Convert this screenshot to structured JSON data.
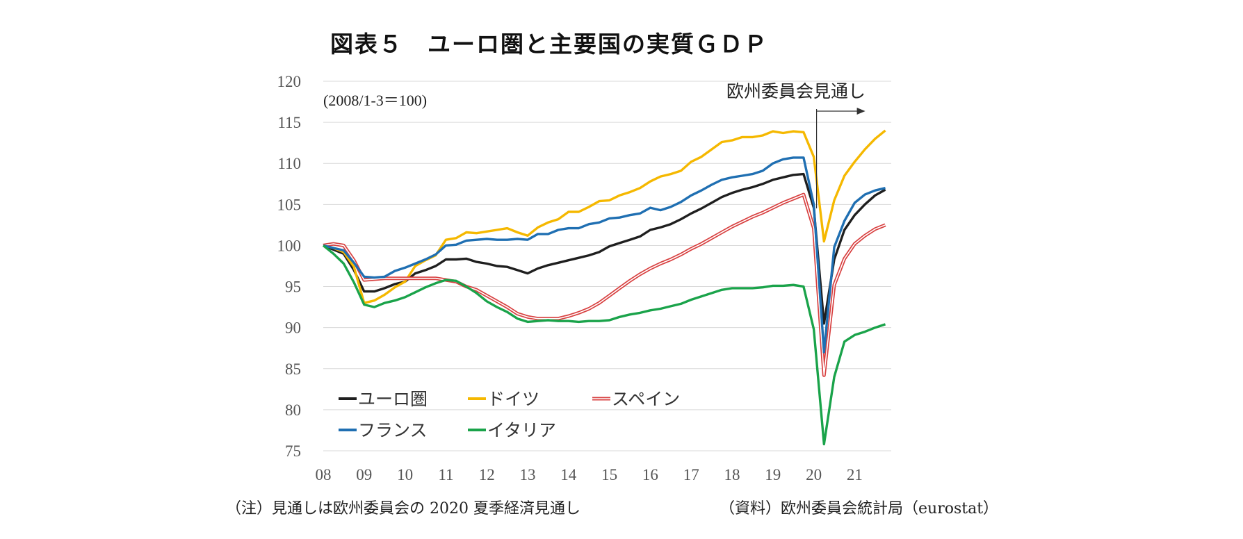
{
  "chart_data": {
    "type": "line",
    "title": "図表５　ユーロ圏と主要国の実質ＧＤＰ",
    "unit_label": "(2008/1-3＝100)",
    "annotation": "欧州委員会見通し",
    "xlabel": "",
    "ylabel": "",
    "ylim": [
      75,
      120
    ],
    "yticks": [
      75,
      80,
      85,
      90,
      95,
      100,
      105,
      110,
      115,
      120
    ],
    "ytick_labels": [
      "75",
      "80",
      "85",
      "90",
      "95",
      "100",
      "105",
      "110",
      "115",
      "120"
    ],
    "xlim": [
      2008,
      2021.75
    ],
    "xticks": [
      {
        "value": 2008,
        "label": "08"
      },
      {
        "value": 2009,
        "label": "09"
      },
      {
        "value": 2010,
        "label": "10"
      },
      {
        "value": 2011,
        "label": "11"
      },
      {
        "value": 2012,
        "label": "12"
      },
      {
        "value": 2013,
        "label": "13"
      },
      {
        "value": 2014,
        "label": "14"
      },
      {
        "value": 2015,
        "label": "15"
      },
      {
        "value": 2016,
        "label": "16"
      },
      {
        "value": 2017,
        "label": "17"
      },
      {
        "value": 2018,
        "label": "18"
      },
      {
        "value": 2019,
        "label": "19"
      },
      {
        "value": 2020,
        "label": "20"
      },
      {
        "value": 2021,
        "label": "21"
      }
    ],
    "forecast_start": 2020.0,
    "grid": true,
    "legend_position": "bottom-left",
    "x": [
      2008.0,
      2008.25,
      2008.5,
      2008.75,
      2009.0,
      2009.25,
      2009.5,
      2009.75,
      2010.0,
      2010.25,
      2010.5,
      2010.75,
      2011.0,
      2011.25,
      2011.5,
      2011.75,
      2012.0,
      2012.25,
      2012.5,
      2012.75,
      2013.0,
      2013.25,
      2013.5,
      2013.75,
      2014.0,
      2014.25,
      2014.5,
      2014.75,
      2015.0,
      2015.25,
      2015.5,
      2015.75,
      2016.0,
      2016.25,
      2016.5,
      2016.75,
      2017.0,
      2017.25,
      2017.5,
      2017.75,
      2018.0,
      2018.25,
      2018.5,
      2018.75,
      2019.0,
      2019.25,
      2019.5,
      2019.75,
      2020.0,
      2020.25,
      2020.5,
      2020.75,
      2021.0,
      2021.25,
      2021.5,
      2021.75
    ],
    "series": [
      {
        "name": "ユーロ圏",
        "color": "#1f1f1f",
        "style": "solid",
        "values": [
          100.0,
          99.5,
          99.0,
          97.0,
          94.4,
          94.4,
          94.8,
          95.3,
          95.6,
          96.6,
          97.0,
          97.5,
          98.3,
          98.3,
          98.4,
          98.0,
          97.8,
          97.5,
          97.4,
          97.0,
          96.6,
          97.2,
          97.6,
          97.9,
          98.2,
          98.5,
          98.8,
          99.2,
          99.9,
          100.3,
          100.7,
          101.1,
          101.9,
          102.2,
          102.6,
          103.2,
          103.9,
          104.5,
          105.2,
          105.9,
          106.4,
          106.8,
          107.1,
          107.5,
          108.0,
          108.3,
          108.6,
          108.7,
          104.6,
          90.5,
          98.3,
          101.9,
          103.7,
          105.0,
          106.1,
          106.8
        ]
      },
      {
        "name": "ドイツ",
        "color": "#f5b800",
        "style": "solid",
        "values": [
          100.0,
          99.7,
          99.2,
          97.4,
          93.0,
          93.3,
          94.0,
          94.9,
          95.6,
          97.5,
          98.2,
          98.8,
          100.7,
          100.9,
          101.6,
          101.5,
          101.7,
          101.9,
          102.1,
          101.6,
          101.2,
          102.2,
          102.8,
          103.2,
          104.1,
          104.1,
          104.7,
          105.4,
          105.5,
          106.1,
          106.5,
          107.0,
          107.8,
          108.4,
          108.7,
          109.1,
          110.2,
          110.8,
          111.7,
          112.6,
          112.8,
          113.2,
          113.2,
          113.4,
          113.9,
          113.7,
          113.9,
          113.8,
          110.8,
          100.5,
          105.5,
          108.5,
          110.2,
          111.7,
          113.0,
          114.0
        ]
      },
      {
        "name": "スペイン",
        "color": "#d84040",
        "style": "double",
        "values": [
          100.0,
          100.2,
          100.0,
          98.2,
          95.8,
          95.9,
          96.0,
          96.0,
          96.0,
          96.0,
          96.0,
          96.0,
          95.8,
          95.6,
          95.0,
          94.6,
          93.9,
          93.2,
          92.5,
          91.7,
          91.3,
          91.1,
          91.1,
          91.1,
          91.4,
          91.8,
          92.3,
          93.0,
          93.9,
          94.8,
          95.7,
          96.5,
          97.2,
          97.8,
          98.3,
          98.9,
          99.6,
          100.2,
          100.9,
          101.6,
          102.3,
          102.9,
          103.5,
          104.0,
          104.6,
          105.2,
          105.7,
          106.2,
          102.1,
          84.2,
          95.2,
          98.4,
          100.2,
          101.2,
          102.0,
          102.5
        ]
      },
      {
        "name": "フランス",
        "color": "#1f6fb2",
        "style": "solid",
        "values": [
          100.0,
          99.7,
          99.4,
          97.9,
          96.2,
          96.1,
          96.2,
          96.9,
          97.3,
          97.8,
          98.3,
          98.9,
          100.0,
          100.1,
          100.6,
          100.7,
          100.8,
          100.7,
          100.7,
          100.8,
          100.7,
          101.4,
          101.4,
          101.9,
          102.1,
          102.1,
          102.6,
          102.8,
          103.3,
          103.4,
          103.7,
          103.9,
          104.6,
          104.3,
          104.7,
          105.3,
          106.1,
          106.7,
          107.4,
          108.0,
          108.3,
          108.5,
          108.7,
          109.1,
          110.0,
          110.5,
          110.7,
          110.7,
          105.0,
          87.0,
          99.8,
          103.0,
          105.2,
          106.2,
          106.7,
          107.0
        ]
      },
      {
        "name": "イタリア",
        "color": "#1aa34a",
        "style": "solid",
        "values": [
          100.0,
          99.0,
          97.8,
          95.5,
          92.8,
          92.5,
          93.0,
          93.3,
          93.7,
          94.3,
          94.9,
          95.4,
          95.8,
          95.7,
          95.0,
          94.2,
          93.2,
          92.5,
          91.9,
          91.1,
          90.7,
          90.8,
          90.9,
          90.8,
          90.8,
          90.7,
          90.8,
          90.8,
          90.9,
          91.3,
          91.6,
          91.8,
          92.1,
          92.3,
          92.6,
          92.9,
          93.4,
          93.8,
          94.2,
          94.6,
          94.8,
          94.8,
          94.8,
          94.9,
          95.1,
          95.1,
          95.2,
          95.0,
          89.8,
          75.8,
          84.0,
          88.3,
          89.1,
          89.5,
          90.0,
          90.4
        ]
      }
    ],
    "legend": [
      {
        "name": "ユーロ圏",
        "color": "#1f1f1f",
        "style": "solid"
      },
      {
        "name": "ドイツ",
        "color": "#f5b800",
        "style": "solid"
      },
      {
        "name": "スペイン",
        "color": "#d84040",
        "style": "double"
      },
      {
        "name": "フランス",
        "color": "#1f6fb2",
        "style": "solid"
      },
      {
        "name": "イタリア",
        "color": "#1aa34a",
        "style": "solid"
      }
    ]
  },
  "footnote": {
    "note": "（注）見通しは欧州委員会の 2020 夏季経済見通し",
    "source": "（資料）欧州委員会統計局（eurostat）"
  }
}
